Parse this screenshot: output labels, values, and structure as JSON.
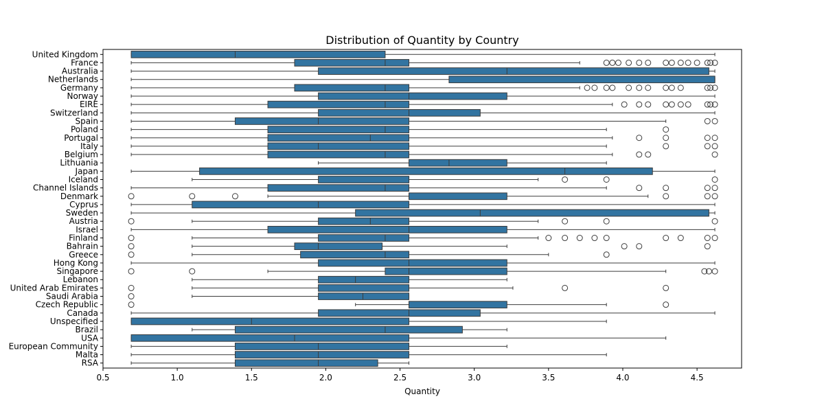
{
  "chart_data": {
    "type": "boxplot",
    "orientation": "horizontal",
    "title": "Distribution of Quantity by Country",
    "xlabel": "Quantity",
    "ylabel": "",
    "xlim": [
      0.5,
      4.8
    ],
    "xticks": [
      0.5,
      1.0,
      1.5,
      2.0,
      2.5,
      3.0,
      3.5,
      4.0,
      4.5
    ],
    "xtick_labels": [
      "0.5",
      "1.0",
      "1.5",
      "2.0",
      "2.5",
      "3.0",
      "3.5",
      "4.0",
      "4.5"
    ],
    "grid": false,
    "colors": {
      "box_fill": "#3274a1",
      "line": "#3b3b3b",
      "frame": "#000000"
    },
    "categories": [
      "United Kingdom",
      "France",
      "Australia",
      "Netherlands",
      "Germany",
      "Norway",
      "EIRE",
      "Switzerland",
      "Spain",
      "Poland",
      "Portugal",
      "Italy",
      "Belgium",
      "Lithuania",
      "Japan",
      "Iceland",
      "Channel Islands",
      "Denmark",
      "Cyprus",
      "Sweden",
      "Austria",
      "Israel",
      "Finland",
      "Bahrain",
      "Greece",
      "Hong Kong",
      "Singapore",
      "Lebanon",
      "United Arab Emirates",
      "Saudi Arabia",
      "Czech Republic",
      "Canada",
      "Unspecified",
      "Brazil",
      "USA",
      "European Community",
      "Malta",
      "RSA"
    ],
    "boxes": [
      {
        "whislo": 0.69,
        "q1": 0.69,
        "med": 1.39,
        "q3": 2.4,
        "whishi": 4.62,
        "fliers": []
      },
      {
        "whislo": 0.69,
        "q1": 1.79,
        "med": 2.4,
        "q3": 2.56,
        "whishi": 3.71,
        "fliers": [
          3.89,
          3.93,
          3.97,
          4.04,
          4.11,
          4.17,
          4.29,
          4.33,
          4.39,
          4.44,
          4.5,
          4.57,
          4.59,
          4.62
        ]
      },
      {
        "whislo": 0.69,
        "q1": 1.95,
        "med": 3.22,
        "q3": 4.58,
        "whishi": 4.62,
        "fliers": []
      },
      {
        "whislo": 0.69,
        "q1": 2.83,
        "med": 4.62,
        "q3": 4.62,
        "whishi": 4.62,
        "fliers": []
      },
      {
        "whislo": 0.69,
        "q1": 1.79,
        "med": 2.4,
        "q3": 2.56,
        "whishi": 3.71,
        "fliers": [
          3.76,
          3.81,
          3.89,
          3.93,
          4.04,
          4.11,
          4.17,
          4.29,
          4.33,
          4.39,
          4.57,
          4.59,
          4.62
        ]
      },
      {
        "whislo": 0.69,
        "q1": 1.95,
        "med": 2.56,
        "q3": 3.22,
        "whishi": 4.62,
        "fliers": []
      },
      {
        "whislo": 0.69,
        "q1": 1.61,
        "med": 2.4,
        "q3": 2.56,
        "whishi": 3.93,
        "fliers": [
          4.01,
          4.11,
          4.17,
          4.29,
          4.33,
          4.39,
          4.44,
          4.57,
          4.59,
          4.62
        ]
      },
      {
        "whislo": 0.69,
        "q1": 1.95,
        "med": 2.56,
        "q3": 3.04,
        "whishi": 4.62,
        "fliers": []
      },
      {
        "whislo": 0.69,
        "q1": 1.39,
        "med": 1.95,
        "q3": 2.56,
        "whishi": 4.29,
        "fliers": [
          4.57,
          4.62
        ]
      },
      {
        "whislo": 0.69,
        "q1": 1.61,
        "med": 2.4,
        "q3": 2.56,
        "whishi": 3.89,
        "fliers": [
          4.29
        ]
      },
      {
        "whislo": 0.69,
        "q1": 1.61,
        "med": 2.3,
        "q3": 2.56,
        "whishi": 3.93,
        "fliers": [
          4.11,
          4.29,
          4.57,
          4.62
        ]
      },
      {
        "whislo": 0.69,
        "q1": 1.61,
        "med": 1.95,
        "q3": 2.56,
        "whishi": 3.89,
        "fliers": [
          4.29,
          4.57,
          4.62
        ]
      },
      {
        "whislo": 0.69,
        "q1": 1.61,
        "med": 2.4,
        "q3": 2.56,
        "whishi": 3.93,
        "fliers": [
          4.11,
          4.17,
          4.62
        ]
      },
      {
        "whislo": 1.95,
        "q1": 2.56,
        "med": 2.83,
        "q3": 3.22,
        "whishi": 3.89,
        "fliers": []
      },
      {
        "whislo": 0.69,
        "q1": 1.15,
        "med": 3.61,
        "q3": 4.2,
        "whishi": 4.62,
        "fliers": []
      },
      {
        "whislo": 1.1,
        "q1": 1.95,
        "med": 2.56,
        "q3": 2.56,
        "whishi": 3.43,
        "fliers": [
          3.61,
          3.89,
          4.62
        ]
      },
      {
        "whislo": 0.69,
        "q1": 1.61,
        "med": 2.4,
        "q3": 2.56,
        "whishi": 3.89,
        "fliers": [
          4.11,
          4.29,
          4.57,
          4.62
        ]
      },
      {
        "whislo": 1.61,
        "q1": 2.56,
        "med": 2.56,
        "q3": 3.22,
        "whishi": 4.17,
        "fliers": [
          0.69,
          1.1,
          1.39,
          4.29,
          4.57,
          4.62
        ]
      },
      {
        "whislo": 0.69,
        "q1": 1.1,
        "med": 1.95,
        "q3": 2.56,
        "whishi": 4.62,
        "fliers": []
      },
      {
        "whislo": 0.69,
        "q1": 2.2,
        "med": 3.04,
        "q3": 4.58,
        "whishi": 4.62,
        "fliers": []
      },
      {
        "whislo": 1.1,
        "q1": 1.95,
        "med": 2.3,
        "q3": 2.56,
        "whishi": 3.43,
        "fliers": [
          0.69,
          3.61,
          3.89,
          4.62
        ]
      },
      {
        "whislo": 0.69,
        "q1": 1.61,
        "med": 2.56,
        "q3": 3.22,
        "whishi": 4.62,
        "fliers": []
      },
      {
        "whislo": 1.1,
        "q1": 1.95,
        "med": 2.4,
        "q3": 2.56,
        "whishi": 3.43,
        "fliers": [
          0.69,
          3.5,
          3.61,
          3.71,
          3.81,
          3.89,
          4.29,
          4.39,
          4.57,
          4.62
        ]
      },
      {
        "whislo": 1.1,
        "q1": 1.79,
        "med": 1.95,
        "q3": 2.38,
        "whishi": 3.22,
        "fliers": [
          0.69,
          4.01,
          4.11,
          4.57
        ]
      },
      {
        "whislo": 1.1,
        "q1": 1.83,
        "med": 2.4,
        "q3": 2.56,
        "whishi": 3.5,
        "fliers": [
          0.69,
          3.89
        ]
      },
      {
        "whislo": 0.69,
        "q1": 1.95,
        "med": 2.56,
        "q3": 3.22,
        "whishi": 4.62,
        "fliers": []
      },
      {
        "whislo": 1.61,
        "q1": 2.4,
        "med": 2.56,
        "q3": 3.22,
        "whishi": 4.29,
        "fliers": [
          0.69,
          1.1,
          4.55,
          4.58,
          4.62
        ]
      },
      {
        "whislo": 1.1,
        "q1": 1.95,
        "med": 2.2,
        "q3": 2.56,
        "whishi": 3.22,
        "fliers": []
      },
      {
        "whislo": 1.1,
        "q1": 1.95,
        "med": 2.56,
        "q3": 2.56,
        "whishi": 3.26,
        "fliers": [
          0.69,
          3.61,
          4.29
        ]
      },
      {
        "whislo": 1.1,
        "q1": 1.95,
        "med": 2.25,
        "q3": 2.56,
        "whishi": 2.56,
        "fliers": [
          0.69
        ]
      },
      {
        "whislo": 2.2,
        "q1": 2.56,
        "med": 2.56,
        "q3": 3.22,
        "whishi": 3.89,
        "fliers": [
          0.69,
          4.29
        ]
      },
      {
        "whislo": 0.69,
        "q1": 1.95,
        "med": 2.56,
        "q3": 3.04,
        "whishi": 4.62,
        "fliers": []
      },
      {
        "whislo": 0.69,
        "q1": 0.69,
        "med": 1.5,
        "q3": 2.56,
        "whishi": 3.89,
        "fliers": []
      },
      {
        "whislo": 1.1,
        "q1": 1.39,
        "med": 2.4,
        "q3": 2.92,
        "whishi": 3.22,
        "fliers": []
      },
      {
        "whislo": 0.69,
        "q1": 0.69,
        "med": 1.79,
        "q3": 2.56,
        "whishi": 4.29,
        "fliers": []
      },
      {
        "whislo": 0.69,
        "q1": 1.39,
        "med": 1.95,
        "q3": 2.56,
        "whishi": 3.22,
        "fliers": []
      },
      {
        "whislo": 0.69,
        "q1": 1.39,
        "med": 1.95,
        "q3": 2.56,
        "whishi": 3.89,
        "fliers": []
      },
      {
        "whislo": 0.69,
        "q1": 1.39,
        "med": 1.95,
        "q3": 2.35,
        "whishi": 2.56,
        "fliers": []
      }
    ]
  }
}
